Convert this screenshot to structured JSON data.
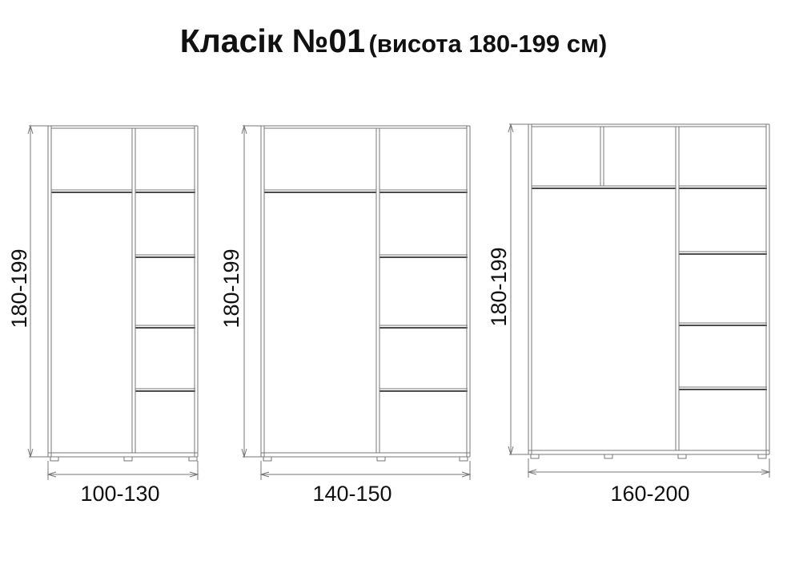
{
  "title": {
    "main": "Класік №01",
    "sub": "(висота 180-199 см)"
  },
  "wardrobes": [
    {
      "width_label": "100-130",
      "height_label": "180-199"
    },
    {
      "width_label": "140-150",
      "height_label": "180-199"
    },
    {
      "width_label": "160-200",
      "height_label": "180-199"
    }
  ],
  "colors": {
    "line": "#777777",
    "shelf_edge": "#111111",
    "text": "#111111"
  }
}
